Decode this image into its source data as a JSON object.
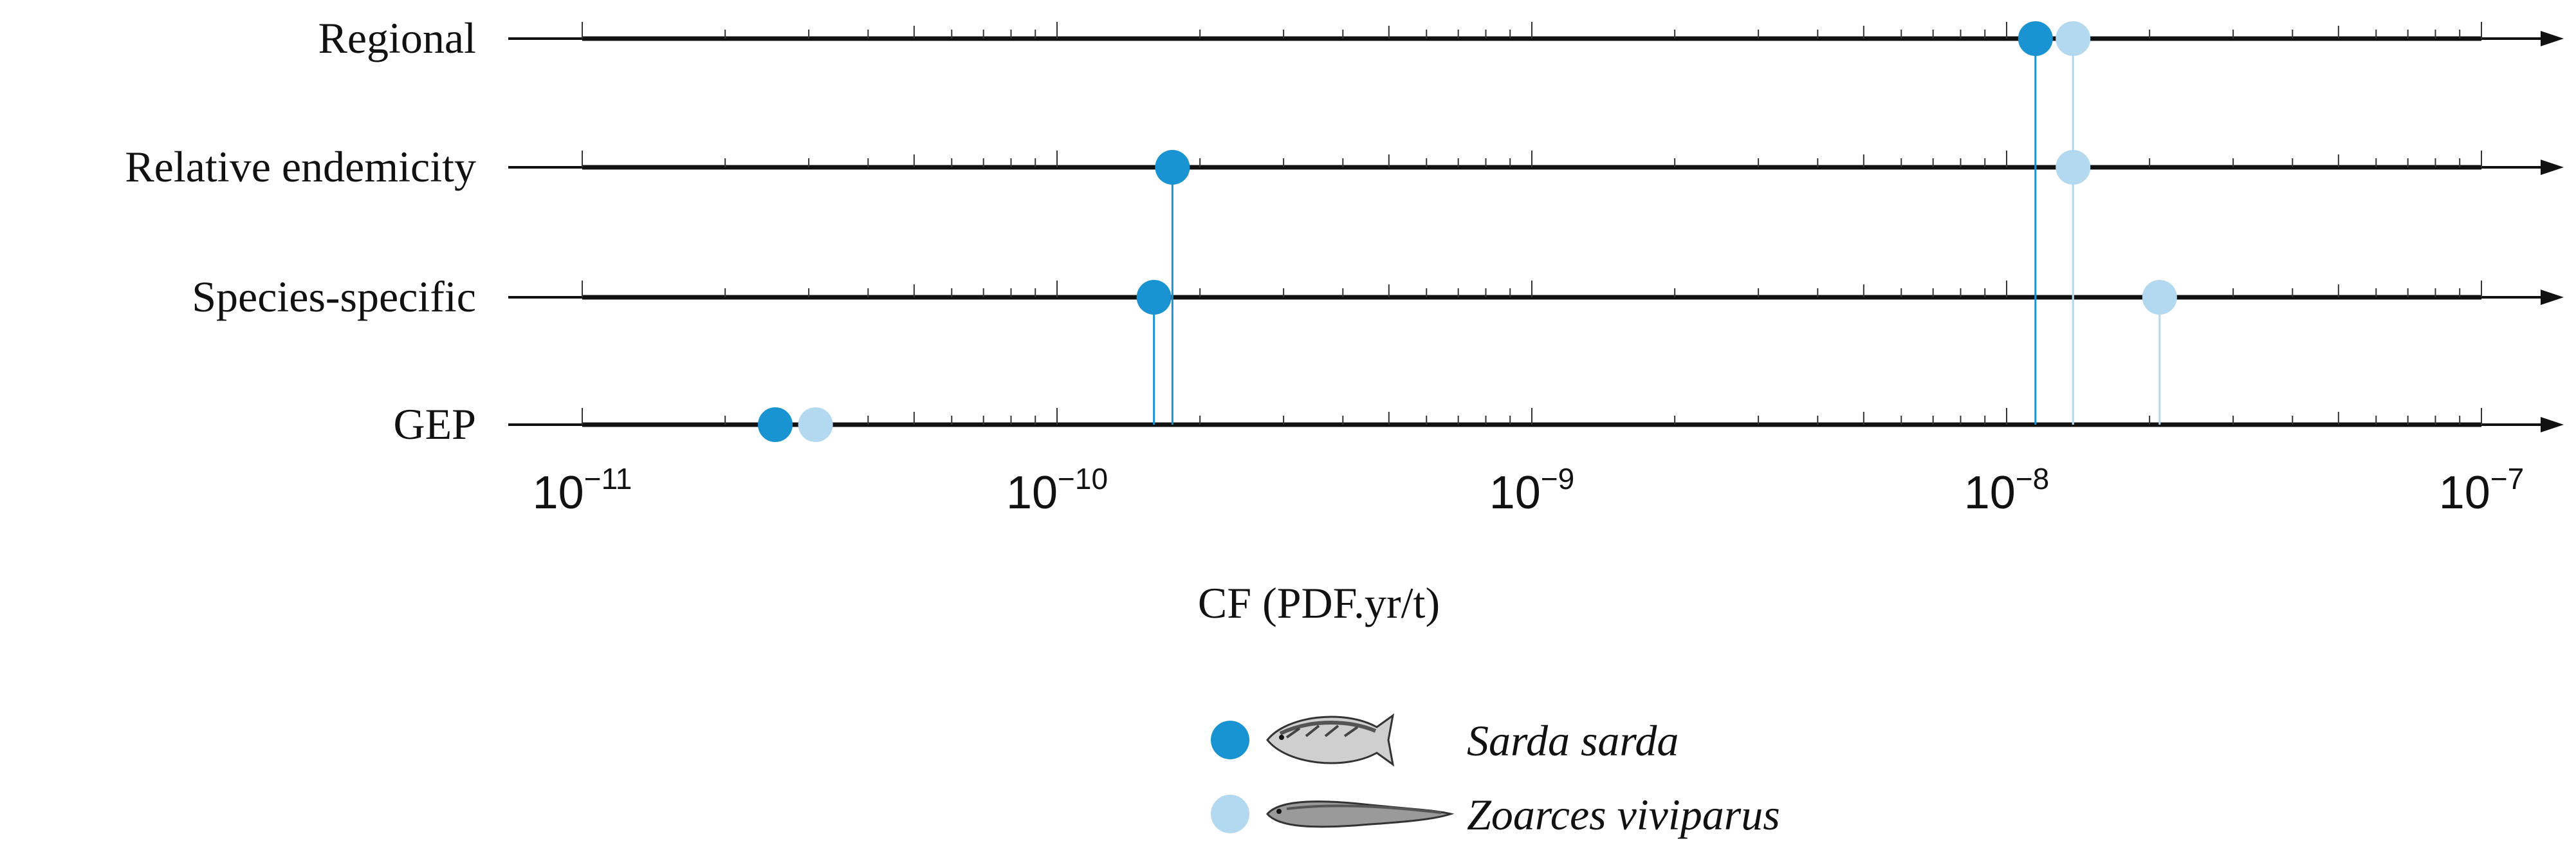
{
  "chart_data": {
    "type": "dot_plot",
    "xscale": "log",
    "xlim": [
      1e-11,
      1e-07
    ],
    "xlabel": "CF (PDF.yr/t)",
    "x_ticks": [
      {
        "base": "10",
        "exp": "−11",
        "value": 1e-11
      },
      {
        "base": "10",
        "exp": "−10",
        "value": 1e-10
      },
      {
        "base": "10",
        "exp": "−9",
        "value": 1e-09
      },
      {
        "base": "10",
        "exp": "−8",
        "value": 1e-08
      },
      {
        "base": "10",
        "exp": "−7",
        "value": 1e-07
      }
    ],
    "categories": [
      "Regional",
      "Relative endemicity",
      "Species-specific",
      "GEP"
    ],
    "series": [
      {
        "name": "Sarda sarda",
        "color": "#1a93d2",
        "values": [
          1.15e-08,
          1.75e-10,
          1.6e-10,
          2.55e-11
        ]
      },
      {
        "name": "Zoarces viviparus",
        "color": "#b3d9f0",
        "values": [
          1.38e-08,
          1.38e-08,
          2.1e-08,
          3.1e-11
        ]
      }
    ],
    "legend": {
      "position": "bottom-center",
      "entries": [
        {
          "label": "Sarda sarda",
          "color": "#1a93d2",
          "icon": "mackerel-fish-icon"
        },
        {
          "label": "Zoarces viviparus",
          "color": "#b3d9f0",
          "icon": "eelpout-fish-icon"
        }
      ]
    }
  }
}
